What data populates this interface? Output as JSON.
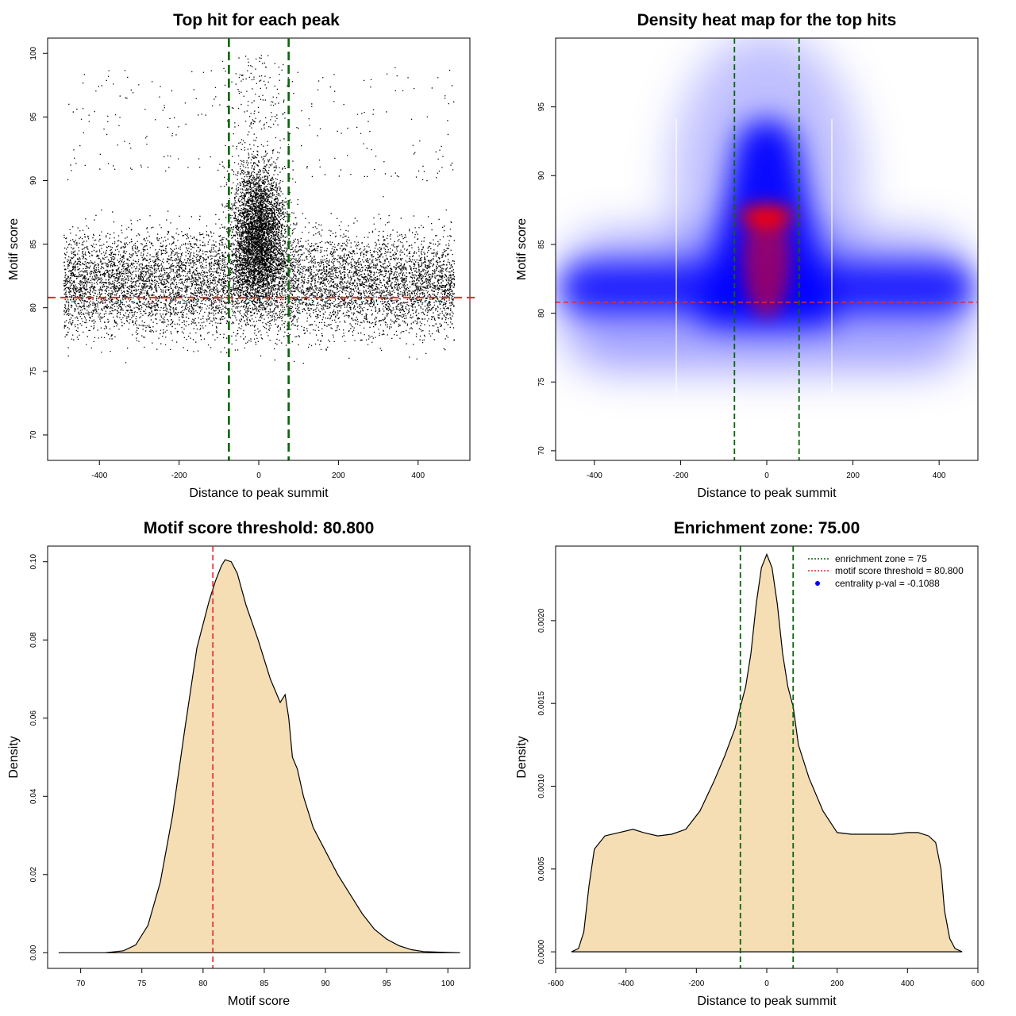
{
  "colors": {
    "threshold": "#e8262b",
    "zone": "#0a640a",
    "fill": "#f5deb3",
    "heat_low": "#0000ff",
    "heat_high": "#ff0000"
  },
  "chart_data": [
    {
      "id": "scatter",
      "type": "scatter",
      "title": "Top hit for each peak",
      "xlabel": "Distance to peak summit",
      "ylabel": "Motif score",
      "xlim": [
        -530,
        530
      ],
      "ylim": [
        68,
        101.2
      ],
      "xticks": [
        -400,
        -200,
        0,
        200,
        400
      ],
      "yticks": [
        70,
        75,
        80,
        85,
        90,
        95,
        100
      ],
      "threshold_y": 80.8,
      "zone_x": [
        -75,
        75
      ],
      "point_x_range": [
        -490,
        490
      ],
      "point_y_range": [
        69.3,
        100
      ]
    },
    {
      "id": "heatmap",
      "type": "heatmap",
      "title": "Density heat map for the top hits",
      "xlabel": "Distance to peak summit",
      "ylabel": "Motif score",
      "xlim": [
        -490,
        490
      ],
      "ylim": [
        69.3,
        100
      ],
      "xticks": [
        -400,
        -200,
        0,
        200,
        400
      ],
      "yticks": [
        70,
        75,
        80,
        85,
        90,
        95
      ],
      "threshold_y": 80.8,
      "zone_x": [
        -75,
        75
      ],
      "peak_density_at": {
        "x": 0,
        "y": 87
      }
    },
    {
      "id": "score-density",
      "type": "area",
      "title": "Motif score threshold: 80.800",
      "xlabel": "Motif score",
      "ylabel": "Density",
      "xlim": [
        67.3,
        101.8
      ],
      "ylim": [
        -0.004,
        0.104
      ],
      "xticks": [
        70,
        75,
        80,
        85,
        90,
        95,
        100
      ],
      "yticks": [
        0.0,
        0.02,
        0.04,
        0.06,
        0.08,
        0.1
      ],
      "ytick_labels": [
        "0.00",
        "0.02",
        "0.04",
        "0.06",
        "0.08",
        "0.10"
      ],
      "threshold_x": 80.8,
      "x": [
        68.2,
        72,
        73.5,
        74.5,
        75.5,
        76.5,
        77.5,
        78.5,
        79.5,
        80.5,
        81,
        81.5,
        81.8,
        82.3,
        82.8,
        83.5,
        84.5,
        85.5,
        86.3,
        86.7,
        87,
        87.3,
        87.7,
        88.2,
        89,
        90,
        91,
        92,
        93,
        94,
        95,
        96,
        97,
        98,
        100,
        101
      ],
      "y": [
        0,
        0,
        0.0005,
        0.002,
        0.007,
        0.018,
        0.035,
        0.057,
        0.078,
        0.09,
        0.095,
        0.099,
        0.1005,
        0.1,
        0.097,
        0.089,
        0.08,
        0.07,
        0.064,
        0.066,
        0.06,
        0.05,
        0.047,
        0.04,
        0.032,
        0.026,
        0.02,
        0.015,
        0.01,
        0.006,
        0.0035,
        0.0018,
        0.0008,
        0.0003,
        5e-05,
        0
      ]
    },
    {
      "id": "distance-density",
      "type": "area",
      "title": "Enrichment zone: 75.00",
      "xlabel": "Distance to peak summit",
      "ylabel": "Density",
      "xlim": [
        -600,
        600
      ],
      "ylim": [
        -0.0001,
        0.00245
      ],
      "xticks": [
        -600,
        -400,
        -200,
        0,
        200,
        400,
        600
      ],
      "yticks": [
        0.0,
        0.0005,
        0.001,
        0.0015,
        0.002
      ],
      "ytick_labels": [
        "0.0000",
        "0.0005",
        "0.0010",
        "0.0015",
        "0.0020"
      ],
      "zone_x": [
        -75,
        75
      ],
      "x": [
        -555,
        -535,
        -520,
        -505,
        -490,
        -460,
        -420,
        -380,
        -350,
        -310,
        -270,
        -230,
        -190,
        -150,
        -120,
        -90,
        -75,
        -60,
        -45,
        -30,
        -15,
        0,
        15,
        30,
        45,
        60,
        75,
        90,
        120,
        160,
        200,
        240,
        280,
        320,
        360,
        400,
        430,
        460,
        480,
        495,
        505,
        520,
        535,
        555
      ],
      "y": [
        0,
        2e-05,
        0.00012,
        0.0004,
        0.00062,
        0.0007,
        0.00072,
        0.00074,
        0.00072,
        0.0007,
        0.00071,
        0.00074,
        0.00085,
        0.00103,
        0.00118,
        0.00135,
        0.00148,
        0.0016,
        0.0018,
        0.0021,
        0.00232,
        0.0024,
        0.00232,
        0.0021,
        0.0018,
        0.0016,
        0.00148,
        0.00125,
        0.00105,
        0.00085,
        0.00072,
        0.00071,
        0.00071,
        0.00071,
        0.00071,
        0.00072,
        0.00072,
        0.0007,
        0.00066,
        0.0005,
        0.00025,
        8e-05,
        2e-05,
        0
      ],
      "legend": [
        {
          "label": "enrichment zone = 75",
          "style": "dotted-green"
        },
        {
          "label": "motif score threshold = 80.800",
          "style": "dotted-red"
        },
        {
          "label": "centrality p-val = -0.1088",
          "style": "blue-point"
        }
      ],
      "legend_position": "top-right"
    }
  ]
}
